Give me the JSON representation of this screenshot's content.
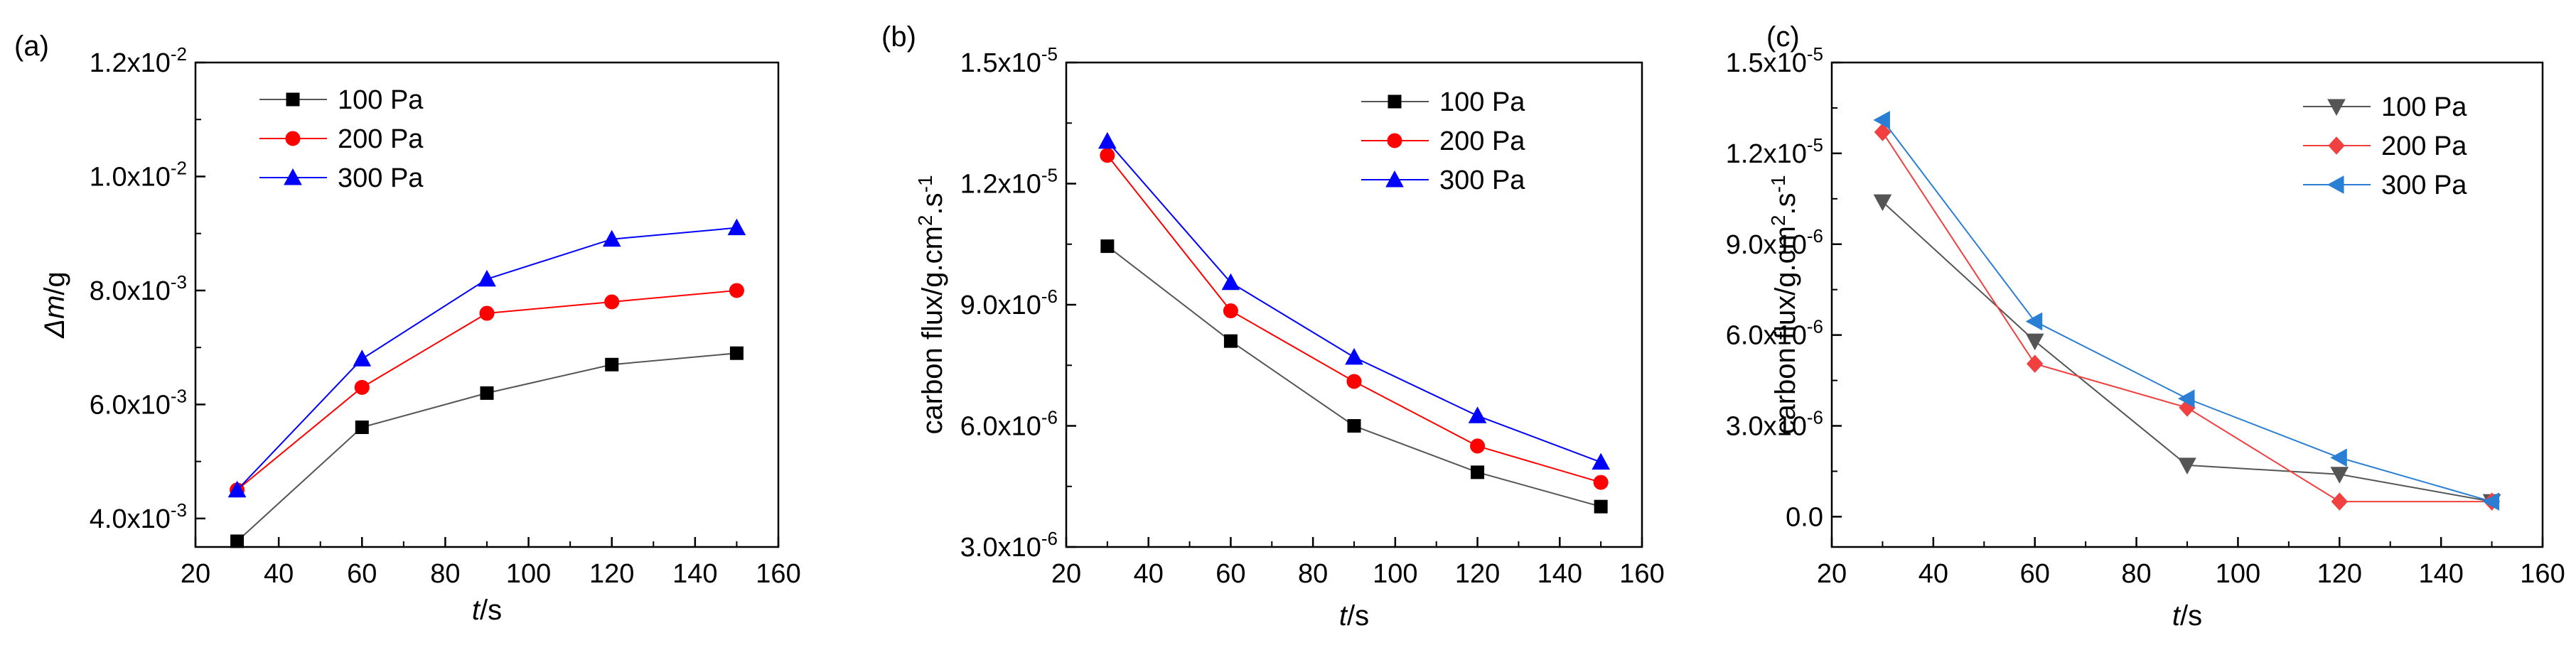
{
  "chart_data": [
    {
      "panel_label": "(a)",
      "type": "line",
      "xlabel": "t/s",
      "ylabel": "Δm/g",
      "xlim": [
        20,
        160
      ],
      "xticks": [
        "20",
        "40",
        "60",
        "80",
        "100",
        "120",
        "140",
        "160"
      ],
      "ylim": [
        0.0035,
        0.012
      ],
      "yticks": [
        {
          "value": 0.004,
          "mant": "4.0x10",
          "exp": "-3"
        },
        {
          "value": 0.006,
          "mant": "6.0x10",
          "exp": "-3"
        },
        {
          "value": 0.008,
          "mant": "8.0x10",
          "exp": "-3"
        },
        {
          "value": 0.01,
          "mant": "1.0x10",
          "exp": "-2"
        },
        {
          "value": 0.012,
          "mant": "1.2x10",
          "exp": "-2"
        }
      ],
      "x": [
        30,
        60,
        90,
        120,
        150
      ],
      "legend_position": "top-left",
      "series": [
        {
          "name": "100 Pa",
          "marker": "square",
          "color": "#000000",
          "line_color": "#555555",
          "values": [
            0.0036,
            0.0056,
            0.0062,
            0.0067,
            0.0069
          ]
        },
        {
          "name": "200 Pa",
          "marker": "circle",
          "color": "#ff0000",
          "line_color": "#ff0000",
          "values": [
            0.0045,
            0.0063,
            0.0076,
            0.0078,
            0.008
          ]
        },
        {
          "name": "300 Pa",
          "marker": "triangle-up",
          "color": "#0000ff",
          "line_color": "#0000ff",
          "values": [
            0.0045,
            0.0068,
            0.0082,
            0.0089,
            0.0091
          ]
        }
      ]
    },
    {
      "panel_label": "(b)",
      "type": "line",
      "xlabel": "t/s",
      "ylabel": "carbon flux/g.cm2.s-1",
      "xlim": [
        20,
        160
      ],
      "xticks": [
        "20",
        "40",
        "60",
        "80",
        "100",
        "120",
        "140",
        "160"
      ],
      "ylim": [
        3e-06,
        1.5e-05
      ],
      "yticks": [
        {
          "value": 3e-06,
          "mant": "3.0x10",
          "exp": "-6"
        },
        {
          "value": 6e-06,
          "mant": "6.0x10",
          "exp": "-6"
        },
        {
          "value": 9e-06,
          "mant": "9.0x10",
          "exp": "-6"
        },
        {
          "value": 1.2e-05,
          "mant": "1.2x10",
          "exp": "-5"
        },
        {
          "value": 1.5e-05,
          "mant": "1.5x10",
          "exp": "-5"
        }
      ],
      "x": [
        30,
        60,
        90,
        120,
        150
      ],
      "legend_position": "top-right",
      "series": [
        {
          "name": "100 Pa",
          "marker": "square",
          "color": "#000000",
          "line_color": "#555555",
          "values": [
            1.045e-05,
            8.1e-06,
            6e-06,
            4.85e-06,
            4e-06
          ]
        },
        {
          "name": "200 Pa",
          "marker": "circle",
          "color": "#ff0000",
          "line_color": "#ff0000",
          "values": [
            1.27e-05,
            8.85e-06,
            7.1e-06,
            5.5e-06,
            4.6e-06
          ]
        },
        {
          "name": "300 Pa",
          "marker": "triangle-up",
          "color": "#0000ff",
          "line_color": "#0000ff",
          "values": [
            1.305e-05,
            9.55e-06,
            7.7e-06,
            6.25e-06,
            5.1e-06
          ]
        }
      ]
    },
    {
      "panel_label": "(c)",
      "type": "line",
      "xlabel": "t/s",
      "ylabel": "carbon flux/g.cm2.s-1",
      "xlim": [
        20,
        160
      ],
      "xticks": [
        "20",
        "40",
        "60",
        "80",
        "100",
        "120",
        "140",
        "160"
      ],
      "ylim": [
        -1e-06,
        1.5e-05
      ],
      "yticks": [
        {
          "value": 0,
          "mant": "0.0",
          "exp": ""
        },
        {
          "value": 3e-06,
          "mant": "3.0x10",
          "exp": "-6"
        },
        {
          "value": 6e-06,
          "mant": "6.0x10",
          "exp": "-6"
        },
        {
          "value": 9e-06,
          "mant": "9.0x10",
          "exp": "-6"
        },
        {
          "value": 1.2e-05,
          "mant": "1.2x10",
          "exp": "-5"
        },
        {
          "value": 1.5e-05,
          "mant": "1.5x10",
          "exp": "-5"
        }
      ],
      "x": [
        30,
        60,
        90,
        120,
        150
      ],
      "legend_position": "top-right",
      "series": [
        {
          "name": "100 Pa",
          "marker": "triangle-down",
          "color": "#555555",
          "line_color": "#555555",
          "values": [
            1.04e-05,
            5.8e-06,
            1.7e-06,
            1.4e-06,
            5e-07
          ]
        },
        {
          "name": "200 Pa",
          "marker": "diamond",
          "color": "#f04040",
          "line_color": "#f04040",
          "values": [
            1.27e-05,
            5.05e-06,
            3.6e-06,
            5e-07,
            5e-07
          ]
        },
        {
          "name": "300 Pa",
          "marker": "triangle-left",
          "color": "#2a7fd4",
          "line_color": "#2a7fd4",
          "values": [
            1.31e-05,
            6.45e-06,
            3.9e-06,
            1.95e-06,
            5e-07
          ]
        }
      ]
    }
  ]
}
